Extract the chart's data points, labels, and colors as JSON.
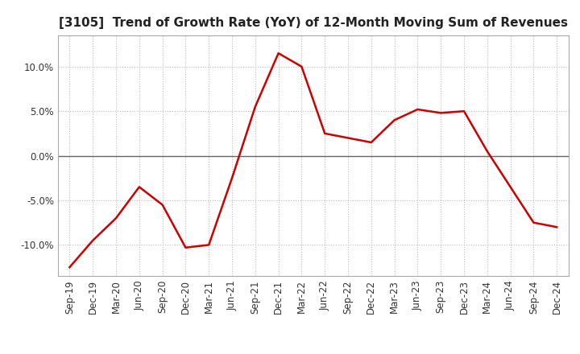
{
  "title": "[3105]  Trend of Growth Rate (YoY) of 12-Month Moving Sum of Revenues",
  "x_labels": [
    "Sep-19",
    "Dec-19",
    "Mar-20",
    "Jun-20",
    "Sep-20",
    "Dec-20",
    "Mar-21",
    "Jun-21",
    "Sep-21",
    "Dec-21",
    "Mar-22",
    "Jun-22",
    "Sep-22",
    "Dec-22",
    "Mar-23",
    "Jun-23",
    "Sep-23",
    "Dec-23",
    "Mar-24",
    "Jun-24",
    "Sep-24",
    "Dec-24"
  ],
  "y_values": [
    -12.5,
    -9.5,
    -7.0,
    -3.5,
    -5.5,
    -10.3,
    -10.0,
    -2.5,
    5.5,
    11.5,
    10.0,
    2.5,
    2.0,
    1.5,
    4.0,
    5.2,
    4.8,
    5.0,
    0.5,
    -3.5,
    -7.5,
    -8.0
  ],
  "line_color": "#cc0000",
  "line_width": 1.8,
  "ylim": [
    -13.5,
    13.5
  ],
  "yticks": [
    -10.0,
    -5.0,
    0.0,
    5.0,
    10.0
  ],
  "ytick_labels": [
    "-10.0%",
    "-5.0%",
    "0.0%",
    "5.0%",
    "10.0%"
  ],
  "background_color": "#ffffff",
  "plot_bg_color": "#ffffff",
  "grid_color": "#bbbbbb",
  "title_fontsize": 11,
  "tick_fontsize": 8.5,
  "zero_line_color": "#666666",
  "spine_color": "#aaaaaa"
}
